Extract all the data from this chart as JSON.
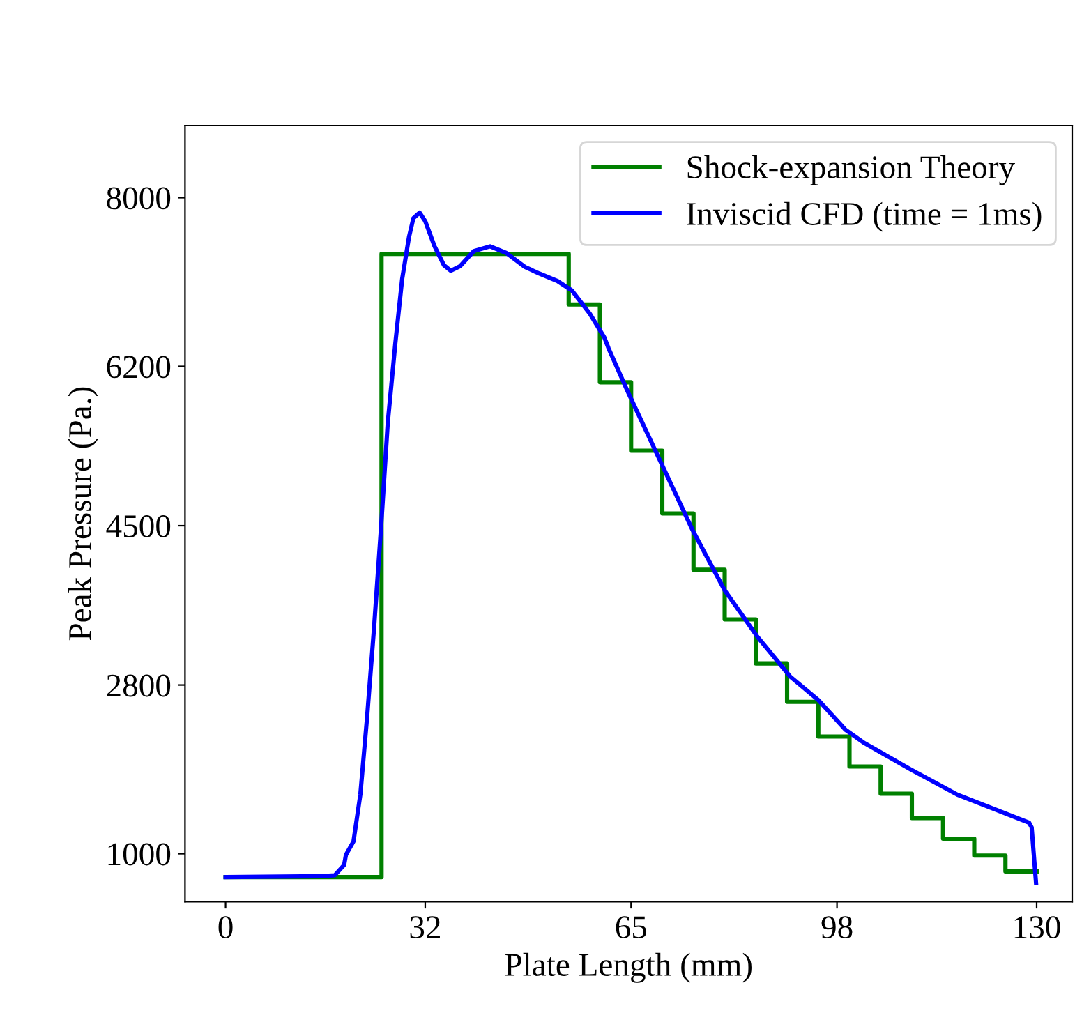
{
  "chart_data": {
    "type": "line",
    "xlabel": "Plate Length (mm)",
    "ylabel": "Peak Pressure (Pa.)",
    "xlim": [
      -6.5,
      135.7
    ],
    "ylim": [
      488,
      8770
    ],
    "xticks": [
      0,
      32,
      65,
      98,
      130
    ],
    "yticks": [
      1000,
      2800,
      4500,
      6200,
      8000
    ],
    "grid": false,
    "legend": "top right",
    "series": [
      {
        "name": "Shock-expansion Theory",
        "type": "step",
        "color": "#008000",
        "x": [
          0,
          25,
          55,
          60,
          65,
          70,
          75,
          80,
          85,
          90,
          95,
          100,
          105,
          110,
          115,
          120,
          125,
          130
        ],
        "values": [
          750,
          7400,
          6860,
          6030,
          5300,
          4630,
          4030,
          3500,
          3030,
          2620,
          2250,
          1930,
          1640,
          1380,
          1160,
          980,
          810,
          810
        ]
      },
      {
        "name": "Inviscid CFD (time = 1ms)",
        "color": "#0000ff",
        "x": [
          0,
          15.2,
          17.5,
          19.0,
          19.3,
          20.5,
          21.6,
          22.7,
          23.8,
          24.9,
          26.0,
          27.2,
          28.3,
          29.4,
          30.1,
          31.1,
          32.0,
          33.5,
          35.0,
          36.1,
          37.6,
          39.8,
          42.4,
          45.0,
          48.0,
          50.3,
          53.2,
          55.5,
          58.4,
          60.7,
          61.4,
          64.4,
          69.6,
          74.8,
          80.0,
          85.3,
          90.5,
          95.0,
          99.4,
          102.4,
          109.8,
          117.3,
          128.8,
          129.2,
          129.9
        ],
        "values": [
          750,
          760,
          770,
          880,
          990,
          1130,
          1630,
          2470,
          3410,
          4460,
          5600,
          6440,
          7130,
          7580,
          7780,
          7840,
          7750,
          7480,
          7280,
          7220,
          7270,
          7430,
          7480,
          7410,
          7260,
          7190,
          7110,
          7010,
          6760,
          6510,
          6390,
          5940,
          5200,
          4460,
          3810,
          3310,
          2890,
          2640,
          2320,
          2180,
          1900,
          1630,
          1330,
          1280,
          690
        ]
      }
    ]
  }
}
